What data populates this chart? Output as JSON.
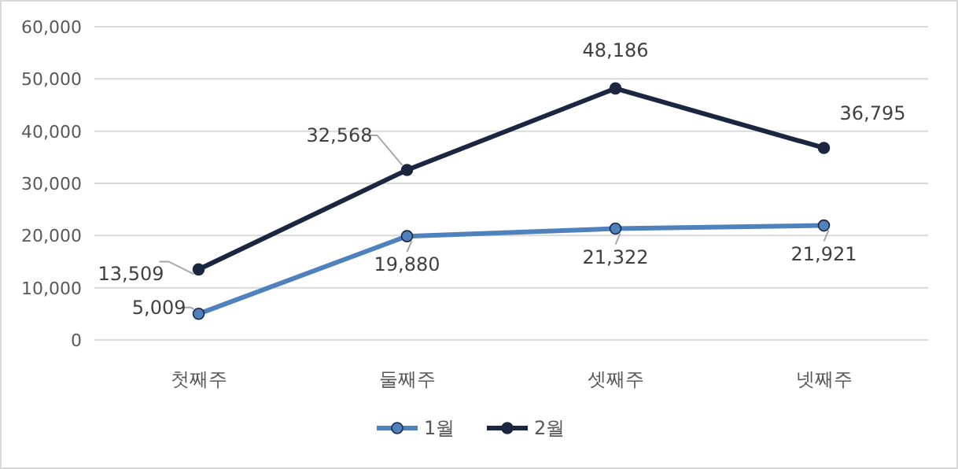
{
  "chart_data": {
    "type": "line",
    "categories": [
      "첫째주",
      "둘째주",
      "셋째주",
      "넷째주"
    ],
    "series": [
      {
        "name": "1월",
        "color": "#4f81bd",
        "values": [
          5009,
          19880,
          21322,
          21921
        ],
        "value_labels": [
          "5,009",
          "19,880",
          "21,322",
          "21,921"
        ]
      },
      {
        "name": "2월",
        "color": "#1b2740",
        "values": [
          13509,
          32568,
          48186,
          36795
        ],
        "value_labels": [
          "13,509",
          "32,568",
          "48,186",
          "36,795"
        ]
      }
    ],
    "ylim": [
      0,
      60000
    ],
    "yticks": [
      {
        "value": 0,
        "label": "0"
      },
      {
        "value": 10000,
        "label": "10,000"
      },
      {
        "value": 20000,
        "label": "20,000"
      },
      {
        "value": 30000,
        "label": "30,000"
      },
      {
        "value": 40000,
        "label": "40,000"
      },
      {
        "value": 50000,
        "label": "50,000"
      },
      {
        "value": 60000,
        "label": "60,000"
      }
    ],
    "grid": "y",
    "legend": "bottom",
    "marker": "circle",
    "line_style": "solid"
  }
}
